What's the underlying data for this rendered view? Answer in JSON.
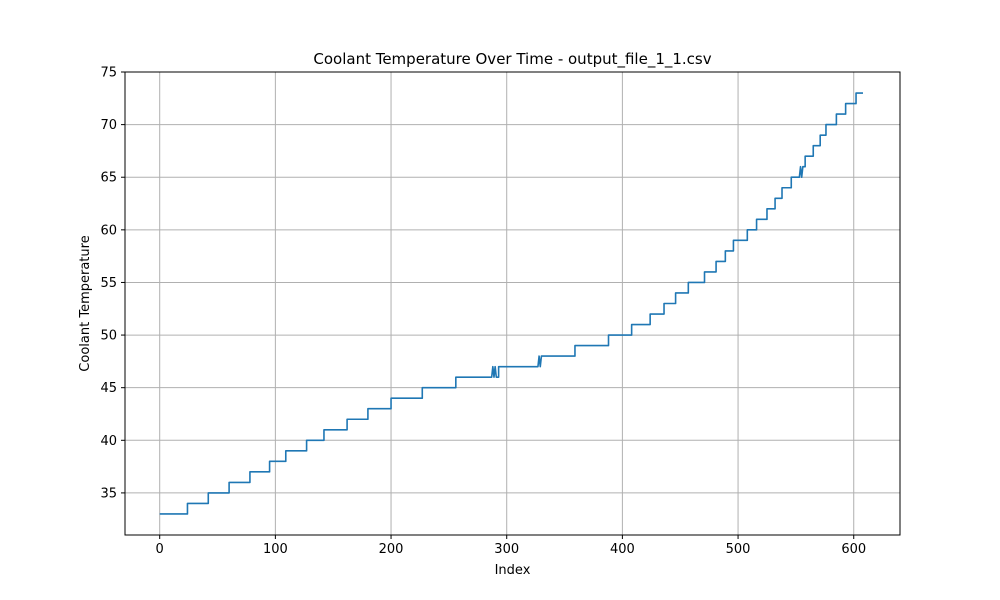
{
  "chart_data": {
    "type": "line",
    "title": "Coolant Temperature Over Time - output_file_1_1.csv",
    "xlabel": "Index",
    "ylabel": "Coolant Temperature",
    "xlim": [
      -30,
      640
    ],
    "ylim": [
      31,
      75
    ],
    "xticks": [
      0,
      100,
      200,
      300,
      400,
      500,
      600
    ],
    "yticks": [
      35,
      40,
      45,
      50,
      55,
      60,
      65,
      70,
      75
    ],
    "grid": true,
    "line_color": "#1f77b4",
    "series": [
      {
        "points": [
          [
            0,
            33
          ],
          [
            24,
            33
          ],
          [
            24,
            34
          ],
          [
            42,
            34
          ],
          [
            42,
            35
          ],
          [
            60,
            35
          ],
          [
            60,
            36
          ],
          [
            78,
            36
          ],
          [
            78,
            37
          ],
          [
            95,
            37
          ],
          [
            95,
            38
          ],
          [
            109,
            38
          ],
          [
            109,
            39
          ],
          [
            127,
            39
          ],
          [
            127,
            40
          ],
          [
            142,
            40
          ],
          [
            142,
            41
          ],
          [
            162,
            41
          ],
          [
            162,
            42
          ],
          [
            180,
            42
          ],
          [
            180,
            43
          ],
          [
            200,
            43
          ],
          [
            200,
            44
          ],
          [
            227,
            44
          ],
          [
            227,
            45
          ],
          [
            256,
            45
          ],
          [
            256,
            46
          ],
          [
            287,
            46
          ],
          [
            288,
            47
          ],
          [
            289,
            46
          ],
          [
            290,
            47
          ],
          [
            291,
            46
          ],
          [
            293,
            46
          ],
          [
            293,
            47
          ],
          [
            327,
            47
          ],
          [
            328,
            48
          ],
          [
            329,
            47
          ],
          [
            330,
            48
          ],
          [
            359,
            48
          ],
          [
            359,
            49
          ],
          [
            388,
            49
          ],
          [
            388,
            50
          ],
          [
            408,
            50
          ],
          [
            408,
            51
          ],
          [
            424,
            51
          ],
          [
            424,
            52
          ],
          [
            436,
            52
          ],
          [
            436,
            53
          ],
          [
            446,
            53
          ],
          [
            446,
            54
          ],
          [
            457,
            54
          ],
          [
            457,
            55
          ],
          [
            471,
            55
          ],
          [
            471,
            56
          ],
          [
            481,
            56
          ],
          [
            481,
            57
          ],
          [
            489,
            57
          ],
          [
            489,
            58
          ],
          [
            496,
            58
          ],
          [
            496,
            59
          ],
          [
            508,
            59
          ],
          [
            508,
            60
          ],
          [
            516,
            60
          ],
          [
            516,
            61
          ],
          [
            525,
            61
          ],
          [
            525,
            62
          ],
          [
            532,
            62
          ],
          [
            532,
            63
          ],
          [
            538,
            63
          ],
          [
            538,
            64
          ],
          [
            546,
            64
          ],
          [
            546,
            65
          ],
          [
            553,
            65
          ],
          [
            554,
            66
          ],
          [
            555,
            65
          ],
          [
            556,
            66
          ],
          [
            558,
            66
          ],
          [
            558,
            67
          ],
          [
            565,
            67
          ],
          [
            565,
            68
          ],
          [
            571,
            68
          ],
          [
            571,
            69
          ],
          [
            576,
            69
          ],
          [
            576,
            70
          ],
          [
            585,
            70
          ],
          [
            585,
            71
          ],
          [
            593,
            71
          ],
          [
            593,
            72
          ],
          [
            602,
            72
          ],
          [
            602,
            73
          ],
          [
            608,
            73
          ]
        ]
      }
    ]
  }
}
